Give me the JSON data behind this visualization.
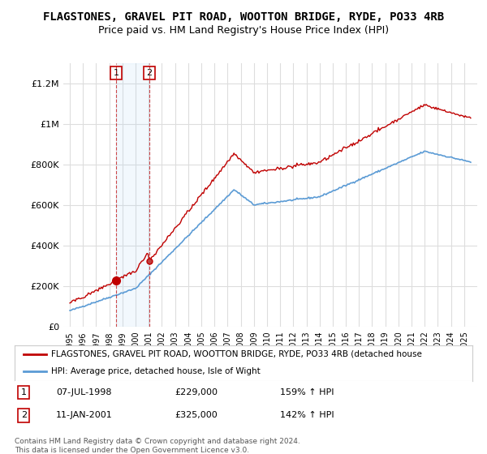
{
  "title": "FLAGSTONES, GRAVEL PIT ROAD, WOOTTON BRIDGE, RYDE, PO33 4RB",
  "subtitle": "Price paid vs. HM Land Registry's House Price Index (HPI)",
  "title_fontsize": 10,
  "subtitle_fontsize": 9,
  "bg_color": "#ffffff",
  "plot_bg_color": "#ffffff",
  "grid_color": "#dddddd",
  "sale1_date": 1998.52,
  "sale1_price": 229000,
  "sale1_label": "1",
  "sale2_date": 2001.03,
  "sale2_price": 325000,
  "sale2_label": "2",
  "legend_line1": "FLAGSTONES, GRAVEL PIT ROAD, WOOTTON BRIDGE, RYDE, PO33 4RB (detached house",
  "legend_line2": "HPI: Average price, detached house, Isle of Wight",
  "table_row1": [
    "1",
    "07-JUL-1998",
    "£229,000",
    "159% ↑ HPI"
  ],
  "table_row2": [
    "2",
    "11-JAN-2001",
    "£325,000",
    "142% ↑ HPI"
  ],
  "footer": "Contains HM Land Registry data © Crown copyright and database right 2024.\nThis data is licensed under the Open Government Licence v3.0.",
  "hpi_color": "#5b9bd5",
  "sale_color": "#c00000",
  "ylim_max": 1300000,
  "xlim_min": 1994.5,
  "xlim_max": 2026.0
}
